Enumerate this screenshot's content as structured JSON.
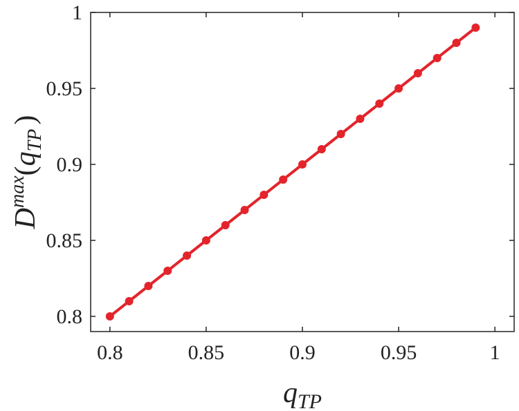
{
  "chart_data": {
    "type": "line",
    "title": "",
    "xlabel": {
      "base": "q",
      "sub": "TP"
    },
    "ylabel": {
      "base": "D",
      "sup": "max",
      "open": "(",
      "inner_base": "q",
      "inner_sub": "TP",
      "close": ")"
    },
    "xlim": [
      0.79,
      1.01
    ],
    "ylim": [
      0.79,
      1.0
    ],
    "xticks": [
      0.8,
      0.85,
      0.9,
      0.95,
      1
    ],
    "xtick_labels": [
      "0.8",
      "0.85",
      "0.9",
      "0.95",
      "1"
    ],
    "yticks": [
      0.8,
      0.85,
      0.9,
      0.95,
      1
    ],
    "ytick_labels": [
      "0.8",
      "0.85",
      "0.9",
      "0.95",
      "1"
    ],
    "grid": false,
    "legend": "none",
    "series": [
      {
        "color": "#e3242b",
        "marker": "circle",
        "x": [
          0.8,
          0.81,
          0.82,
          0.83,
          0.84,
          0.85,
          0.86,
          0.87,
          0.88,
          0.89,
          0.9,
          0.91,
          0.92,
          0.93,
          0.94,
          0.95,
          0.96,
          0.97,
          0.98,
          0.99
        ],
        "y": [
          0.8,
          0.81,
          0.82,
          0.83,
          0.84,
          0.85,
          0.86,
          0.87,
          0.88,
          0.89,
          0.9,
          0.91,
          0.92,
          0.93,
          0.94,
          0.95,
          0.96,
          0.97,
          0.98,
          0.99
        ]
      }
    ]
  }
}
